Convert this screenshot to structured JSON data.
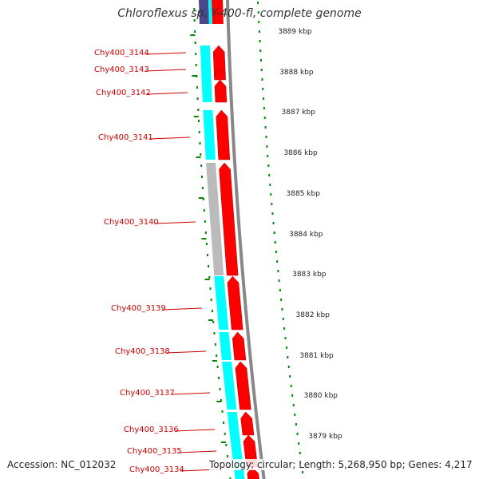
{
  "title": "Chloroflexus sp. Y-400-fl, complete genome",
  "accession": "Accession: NC_012032",
  "topology": "Topology: circular; Length: 5,268,950 bp; Genes: 4,217",
  "colors": {
    "gene_forward": "#ff0000",
    "cog_cyan": "#00ffff",
    "cog_gray": "#bbbbbb",
    "cog_navy": "#4a4a8a",
    "backbone": "#888888",
    "tick": "#008800",
    "label": "#cc0000"
  },
  "genes": [
    {
      "label": "Chy400_3144"
    },
    {
      "label": "Chy400_3143"
    },
    {
      "label": "Chy400_3142"
    },
    {
      "label": "Chy400_3141"
    },
    {
      "label": "Chy400_3140"
    },
    {
      "label": "Chy400_3139"
    },
    {
      "label": "Chy400_3138"
    },
    {
      "label": "Chy400_3137"
    },
    {
      "label": "Chy400_3136"
    },
    {
      "label": "Chy400_3135"
    },
    {
      "label": "Chy400_3134"
    }
  ],
  "scale": [
    {
      "label": "3889 kbp"
    },
    {
      "label": "3888 kbp"
    },
    {
      "label": "3887 kbp"
    },
    {
      "label": "3886 kbp"
    },
    {
      "label": "3885 kbp"
    },
    {
      "label": "3884 kbp"
    },
    {
      "label": "3883 kbp"
    },
    {
      "label": "3882 kbp"
    },
    {
      "label": "3881 kbp"
    },
    {
      "label": "3880 kbp"
    },
    {
      "label": "3879 kbp"
    }
  ]
}
